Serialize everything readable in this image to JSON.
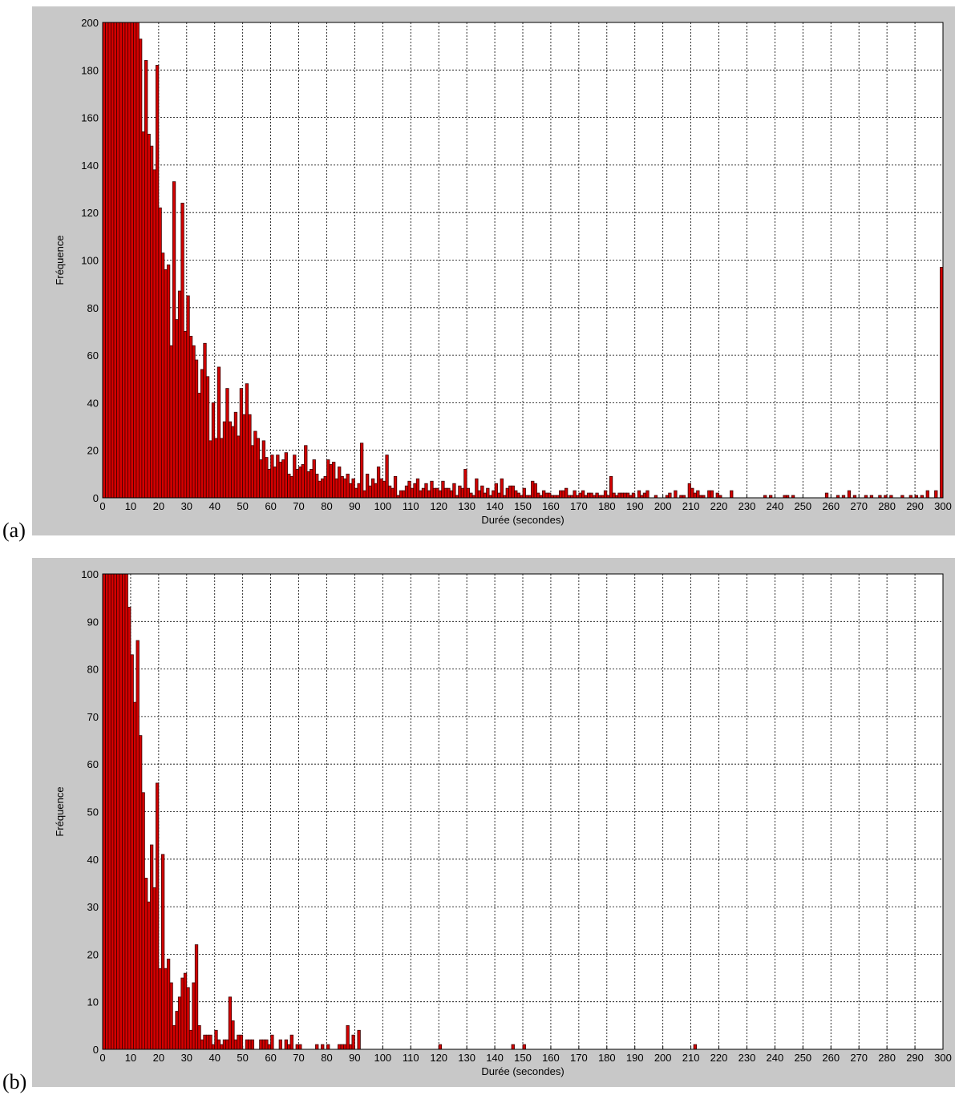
{
  "chart_data": [
    {
      "type": "histogram",
      "label": "(a)",
      "x_label": "Durée (secondes)",
      "y_label": "Fréquence",
      "color": "#d40000",
      "edgecolor": "#3a0000",
      "grid": true,
      "xlim": [
        0,
        300
      ],
      "ylim": [
        0,
        200
      ],
      "xticks": [
        0,
        10,
        20,
        30,
        40,
        50,
        60,
        70,
        80,
        90,
        100,
        110,
        120,
        130,
        140,
        150,
        160,
        170,
        180,
        190,
        200,
        210,
        220,
        230,
        240,
        250,
        260,
        270,
        280,
        290,
        300
      ],
      "yticks": [
        0,
        20,
        40,
        60,
        80,
        100,
        120,
        140,
        160,
        180,
        200
      ],
      "bins": [
        0,
        1,
        2,
        3,
        4,
        5,
        6,
        7,
        8,
        9,
        10,
        11,
        12,
        13,
        14,
        15,
        16,
        17,
        18,
        19,
        20,
        21,
        22,
        23,
        24,
        25,
        26,
        27,
        28,
        29,
        30,
        31,
        32,
        33,
        34,
        35,
        36,
        37,
        38,
        39,
        40,
        41,
        42,
        43,
        44,
        45,
        46,
        47,
        48,
        49,
        50,
        51,
        52,
        53,
        54,
        55,
        56,
        57,
        58,
        59,
        60,
        61,
        62,
        63,
        64,
        65,
        66,
        67,
        68,
        69,
        70,
        71,
        72,
        73,
        74,
        75,
        76,
        77,
        78,
        79,
        80,
        81,
        82,
        83,
        84,
        85,
        86,
        87,
        88,
        89,
        90,
        91,
        92,
        93,
        94,
        95,
        96,
        97,
        98,
        99,
        100,
        101,
        102,
        103,
        104,
        105,
        106,
        107,
        108,
        109,
        110,
        111,
        112,
        113,
        114,
        115,
        116,
        117,
        118,
        119,
        120,
        121,
        122,
        123,
        124,
        125,
        126,
        127,
        128,
        129,
        130,
        131,
        132,
        133,
        134,
        135,
        136,
        137,
        138,
        139,
        140,
        141,
        142,
        143,
        144,
        145,
        146,
        147,
        148,
        149,
        150,
        151,
        152,
        153,
        154,
        155,
        156,
        157,
        158,
        159,
        160,
        161,
        162,
        163,
        164,
        165,
        166,
        167,
        168,
        169,
        170,
        171,
        172,
        173,
        174,
        175,
        176,
        177,
        178,
        179,
        180,
        181,
        182,
        183,
        184,
        185,
        186,
        187,
        188,
        189,
        190,
        191,
        192,
        193,
        194,
        195,
        196,
        197,
        198,
        199,
        200,
        201,
        202,
        203,
        204,
        205,
        206,
        207,
        208,
        209,
        210,
        211,
        212,
        213,
        214,
        215,
        216,
        217,
        218,
        219,
        220,
        221,
        222,
        223,
        224,
        225,
        226,
        227,
        228,
        229,
        230,
        231,
        232,
        233,
        234,
        235,
        236,
        237,
        238,
        239,
        240,
        241,
        242,
        243,
        244,
        245,
        246,
        247,
        248,
        249,
        250,
        251,
        252,
        253,
        254,
        255,
        256,
        257,
        258,
        259,
        260,
        261,
        262,
        263,
        264,
        265,
        266,
        267,
        268,
        269,
        270,
        271,
        272,
        273,
        274,
        275,
        276,
        277,
        278,
        279,
        280,
        281,
        282,
        283,
        284,
        285,
        286,
        287,
        288,
        289,
        290,
        291,
        292,
        293,
        294,
        295,
        296,
        297,
        298,
        299,
        300
      ],
      "counts": [
        200,
        200,
        200,
        200,
        200,
        200,
        200,
        200,
        200,
        200,
        200,
        200,
        200,
        193,
        154,
        184,
        153,
        148,
        138,
        182,
        122,
        103,
        96,
        98,
        64,
        133,
        75,
        87,
        124,
        70,
        85,
        68,
        64,
        58,
        44,
        54,
        65,
        51,
        24,
        40,
        25,
        55,
        25,
        32,
        46,
        32,
        30,
        36,
        26,
        46,
        35,
        48,
        35,
        22,
        28,
        25,
        16,
        24,
        17,
        12,
        18,
        13,
        18,
        15,
        16,
        19,
        10,
        9,
        18,
        12,
        13,
        14,
        22,
        11,
        12,
        16,
        10,
        7,
        8,
        9,
        16,
        14,
        15,
        8,
        13,
        9,
        8,
        10,
        6,
        8,
        4,
        6,
        23,
        3,
        10,
        5,
        8,
        6,
        13,
        8,
        7,
        18,
        5,
        4,
        9,
        1,
        3,
        3,
        5,
        7,
        4,
        6,
        8,
        3,
        4,
        6,
        3,
        7,
        4,
        4,
        3,
        7,
        4,
        4,
        3,
        6,
        1,
        5,
        4,
        12,
        4,
        2,
        1,
        8,
        3,
        5,
        2,
        4,
        1,
        3,
        6,
        2,
        8,
        1,
        4,
        5,
        5,
        3,
        2,
        1,
        4,
        1,
        1,
        7,
        6,
        2,
        1,
        3,
        2,
        2,
        1,
        1,
        1,
        3,
        3,
        4,
        1,
        1,
        3,
        1,
        2,
        3,
        1,
        2,
        2,
        1,
        2,
        1,
        1,
        3,
        1,
        9,
        2,
        1,
        2,
        2,
        2,
        2,
        1,
        2,
        0,
        3,
        1,
        2,
        3,
        0,
        0,
        1,
        0,
        0,
        0,
        1,
        2,
        0,
        3,
        0,
        1,
        1,
        0,
        6,
        4,
        2,
        3,
        1,
        1,
        0,
        3,
        3,
        0,
        2,
        1,
        0,
        0,
        0,
        3,
        0,
        0,
        0,
        0,
        0,
        0,
        0,
        0,
        0,
        0,
        0,
        1,
        0,
        1,
        0,
        0,
        0,
        0,
        1,
        1,
        0,
        1,
        0,
        0,
        0,
        0,
        0,
        0,
        0,
        0,
        0,
        0,
        0,
        2,
        0,
        0,
        0,
        1,
        0,
        1,
        0,
        3,
        0,
        1,
        0,
        0,
        0,
        1,
        0,
        1,
        0,
        0,
        1,
        0,
        1,
        0,
        1,
        0,
        0,
        0,
        1,
        0,
        0,
        1,
        0,
        1,
        0,
        1,
        0,
        3,
        0,
        0,
        3,
        0,
        97
      ]
    },
    {
      "type": "histogram",
      "label": "(b)",
      "x_label": "Durée (secondes)",
      "y_label": "Fréquence",
      "color": "#d40000",
      "edgecolor": "#3a0000",
      "grid": true,
      "xlim": [
        0,
        300
      ],
      "ylim": [
        0,
        100
      ],
      "xticks": [
        0,
        10,
        20,
        30,
        40,
        50,
        60,
        70,
        80,
        90,
        100,
        110,
        120,
        130,
        140,
        150,
        160,
        170,
        180,
        190,
        200,
        210,
        220,
        230,
        240,
        250,
        260,
        270,
        280,
        290,
        300
      ],
      "yticks": [
        0,
        10,
        20,
        30,
        40,
        50,
        60,
        70,
        80,
        90,
        100
      ],
      "bins": [
        0,
        1,
        2,
        3,
        4,
        5,
        6,
        7,
        8,
        9,
        10,
        11,
        12,
        13,
        14,
        15,
        16,
        17,
        18,
        19,
        20,
        21,
        22,
        23,
        24,
        25,
        26,
        27,
        28,
        29,
        30,
        31,
        32,
        33,
        34,
        35,
        36,
        37,
        38,
        39,
        40,
        41,
        42,
        43,
        44,
        45,
        46,
        47,
        48,
        49,
        50,
        51,
        52,
        53,
        54,
        55,
        56,
        57,
        58,
        59,
        60,
        61,
        62,
        63,
        64,
        65,
        66,
        67,
        68,
        69,
        70,
        71,
        72,
        73,
        74,
        75,
        76,
        77,
        78,
        79,
        80,
        81,
        82,
        83,
        84,
        85,
        86,
        87,
        88,
        89,
        90,
        91,
        92,
        93,
        94,
        95,
        96,
        97,
        98,
        99,
        100,
        101,
        102,
        103,
        104,
        105,
        106,
        107,
        108,
        109,
        110,
        111,
        112,
        113,
        114,
        115,
        116,
        117,
        118,
        119,
        120,
        121,
        122,
        123,
        124,
        125,
        126,
        127,
        128,
        129,
        130,
        131,
        132,
        133,
        134,
        135,
        136,
        137,
        138,
        139,
        140,
        141,
        142,
        143,
        144,
        145,
        146,
        147,
        148,
        149,
        150,
        151,
        152,
        153,
        154,
        155,
        156,
        157,
        158,
        159,
        160,
        161,
        162,
        163,
        164,
        165,
        166,
        167,
        168,
        169,
        170,
        171,
        172,
        173,
        174,
        175,
        176,
        177,
        178,
        179,
        180,
        181,
        182,
        183,
        184,
        185,
        186,
        187,
        188,
        189,
        190,
        191,
        192,
        193,
        194,
        195,
        196,
        197,
        198,
        199,
        200,
        201,
        202,
        203,
        204,
        205,
        206,
        207,
        208,
        209,
        210,
        211,
        212,
        213,
        214,
        215,
        216,
        217,
        218,
        219,
        220,
        221,
        222,
        223,
        224,
        225,
        226,
        227,
        228,
        229,
        230,
        231,
        232,
        233,
        234,
        235,
        236,
        237,
        238,
        239,
        240,
        241,
        242,
        243,
        244,
        245,
        246,
        247,
        248,
        249,
        250,
        251,
        252,
        253,
        254,
        255,
        256,
        257,
        258,
        259,
        260,
        261,
        262,
        263,
        264,
        265,
        266,
        267,
        268,
        269,
        270,
        271,
        272,
        273,
        274,
        275,
        276,
        277,
        278,
        279,
        280,
        281,
        282,
        283,
        284,
        285,
        286,
        287,
        288,
        289,
        290,
        291,
        292,
        293,
        294,
        295,
        296,
        297,
        298,
        299,
        300
      ],
      "counts": [
        100,
        100,
        100,
        100,
        100,
        100,
        100,
        100,
        100,
        93,
        83,
        73,
        86,
        66,
        54,
        36,
        31,
        43,
        34,
        56,
        17,
        41,
        17,
        19,
        14,
        5,
        8,
        11,
        15,
        16,
        13,
        4,
        14,
        22,
        5,
        2,
        3,
        3,
        3,
        1,
        4,
        2,
        1,
        2,
        2,
        11,
        6,
        2,
        3,
        3,
        0,
        2,
        2,
        2,
        0,
        0,
        2,
        2,
        2,
        1,
        3,
        0,
        0,
        2,
        0,
        2,
        1,
        3,
        0,
        1,
        1,
        0,
        0,
        0,
        0,
        0,
        1,
        0,
        1,
        0,
        1,
        0,
        0,
        0,
        1,
        1,
        1,
        5,
        1,
        3,
        0,
        4,
        0,
        0,
        0,
        0,
        0,
        0,
        0,
        0,
        0,
        0,
        0,
        0,
        0,
        0,
        0,
        0,
        0,
        0,
        0,
        0,
        0,
        0,
        0,
        0,
        0,
        0,
        0,
        0,
        1,
        0,
        0,
        0,
        0,
        0,
        0,
        0,
        0,
        0,
        0,
        0,
        0,
        0,
        0,
        0,
        0,
        0,
        0,
        0,
        0,
        0,
        0,
        0,
        0,
        0,
        1,
        0,
        0,
        0,
        1,
        0,
        0,
        0,
        0,
        0,
        0,
        0,
        0,
        0,
        0,
        0,
        0,
        0,
        0,
        0,
        0,
        0,
        0,
        0,
        0,
        0,
        0,
        0,
        0,
        0,
        0,
        0,
        0,
        0,
        0,
        0,
        0,
        0,
        0,
        0,
        0,
        0,
        0,
        0,
        0,
        0,
        0,
        0,
        0,
        0,
        0,
        0,
        0,
        0,
        0,
        0,
        0,
        0,
        0,
        0,
        0,
        0,
        0,
        0,
        0,
        1,
        0,
        0,
        0,
        0,
        0,
        0,
        0,
        0,
        0,
        0,
        0,
        0,
        0,
        0,
        0,
        0,
        0,
        0,
        0,
        0,
        0,
        0,
        0,
        0,
        0,
        0,
        0,
        0,
        0,
        0,
        0,
        0,
        0,
        0,
        0,
        0,
        0,
        0,
        0,
        0,
        0,
        0,
        0,
        0,
        0,
        0,
        0,
        0,
        0,
        0,
        0,
        0,
        0,
        0,
        0,
        0,
        0,
        0,
        0,
        0,
        0,
        0,
        0,
        0,
        0,
        0,
        0,
        0,
        0,
        0,
        0,
        0,
        0,
        0,
        0,
        0,
        0,
        0,
        0,
        0,
        0,
        0,
        0,
        0,
        0,
        0,
        0,
        0
      ]
    }
  ]
}
